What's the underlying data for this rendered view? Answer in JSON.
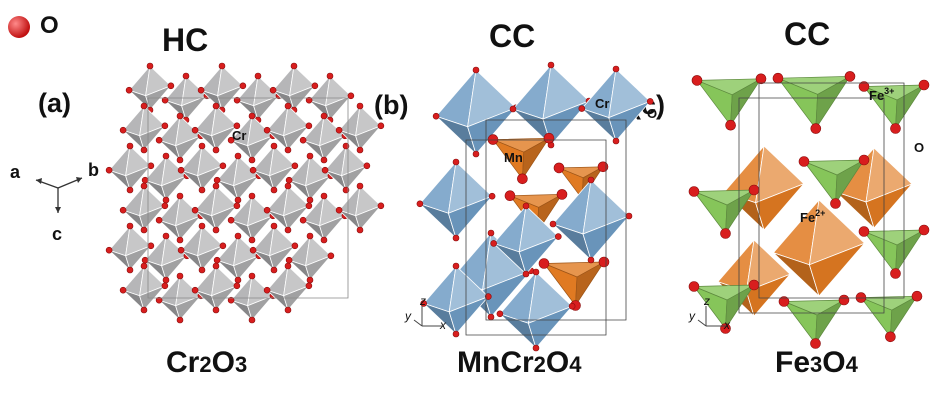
{
  "legend": {
    "atom_symbol": "O",
    "atom_color": "#d81e1e"
  },
  "panels": [
    {
      "id": "a",
      "label": "(a)",
      "lattice": "HC",
      "formula_main": "Cr",
      "formula_sub1": "2",
      "formula_mid": "O",
      "formula_sub2": "3",
      "atom_label": "Cr",
      "poly_color": "#a9a9ab"
    },
    {
      "id": "b",
      "label": "(b)",
      "lattice": "CC",
      "formula_main": "MnCr",
      "formula_sub1": "2",
      "formula_mid": "O",
      "formula_sub2": "4",
      "atom_label_1": "Cr",
      "atom_label_2": "Mn",
      "oxygen_label": "O",
      "oct_color": "#6f9cc4",
      "tet_color": "#e07a22"
    },
    {
      "id": "c",
      "label": "(c)",
      "lattice": "CC",
      "formula_main": "Fe",
      "formula_sub1": "3",
      "formula_mid": "O",
      "formula_sub2": "4",
      "atom_label_1": "Fe",
      "atom_charge_1": "3+",
      "atom_label_2": "Fe",
      "atom_charge_2": "2+",
      "oxygen_label": "O",
      "tet_color": "#86c55a",
      "oct_color": "#e07a22"
    }
  ],
  "axes_a": {
    "a": "a",
    "b": "b",
    "c": "c"
  },
  "axes_bc": {
    "z": "z",
    "y": "y",
    "x": "x"
  }
}
